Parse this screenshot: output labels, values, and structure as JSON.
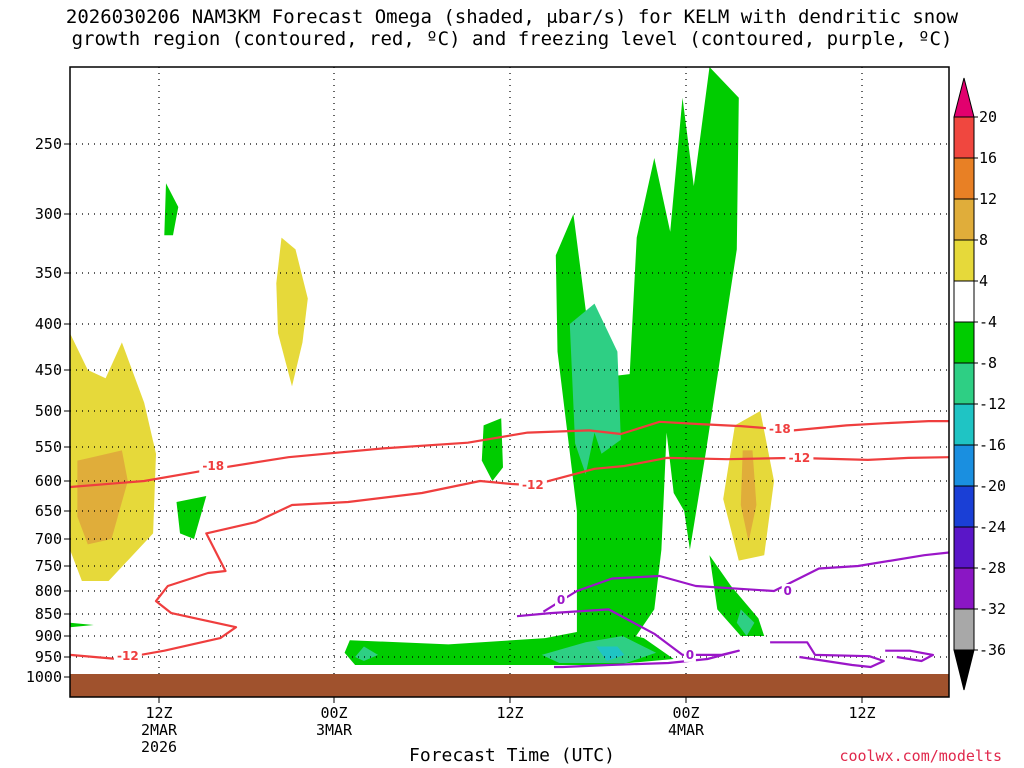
{
  "title_line1": "2026030206 NAM3KM Forecast Omega (shaded, μbar/s) for KELM with dendritic snow",
  "title_line2": "growth region (contoured, red, ºC) and freezing level (contoured, purple, ºC)",
  "xlabel": "Forecast Time (UTC)",
  "credit": "coolwx.com/modelts",
  "chart_data": {
    "type": "heatmap",
    "title": "2026030206 NAM3KM Forecast Omega (shaded, μbar/s) for KELM with dendritic snow growth region (contoured, red, ºC) and freezing level (contoured, purple, ºC)",
    "xlabel": "Forecast Time (UTC)",
    "ylabel": "",
    "x_hours_range": [
      6,
      57
    ],
    "y_pressure_range_hPa": [
      200,
      1000
    ],
    "y_ticks": [
      250,
      300,
      350,
      400,
      450,
      500,
      550,
      600,
      650,
      700,
      750,
      800,
      850,
      900,
      950,
      1000
    ],
    "x_ticks": [
      {
        "hour": 12,
        "labels": [
          "12Z",
          "2MAR",
          "2026"
        ]
      },
      {
        "hour": 22,
        "labels": [
          "00Z",
          "3MAR"
        ]
      },
      {
        "hour": 32,
        "labels": [
          "12Z"
        ]
      },
      {
        "hour": 42,
        "labels": [
          "00Z",
          "4MAR"
        ]
      },
      {
        "hour": 51,
        "labels": [
          "12Z"
        ]
      }
    ],
    "grid": true,
    "colorbar": {
      "labels": [
        "20",
        "16",
        "12",
        "8",
        "4",
        "-4",
        "-8",
        "-12",
        "-16",
        "-20",
        "-24",
        "-28",
        "-32",
        "-36"
      ],
      "colors": [
        "#e2006e",
        "#f0473f",
        "#e88025",
        "#e0ad3a",
        "#e6d93a",
        "#ffffff",
        "#00cc00",
        "#2ecf84",
        "#1fc4c4",
        "#1a8fe0",
        "#1a3fd6",
        "#5a16c8",
        "#8a16c4",
        "#a8a8a8",
        "#000000"
      ]
    },
    "omega_regions": [
      {
        "level": "4",
        "color": "#e6d93a",
        "polygon": [
          [
            6,
            410
          ],
          [
            7.2,
            450
          ],
          [
            8.4,
            460
          ],
          [
            9.5,
            420
          ],
          [
            11,
            490
          ],
          [
            11.8,
            560
          ],
          [
            11.6,
            690
          ],
          [
            8.6,
            780
          ],
          [
            6.8,
            780
          ],
          [
            6,
            720
          ]
        ]
      },
      {
        "level": "8",
        "color": "#e0ad3a",
        "polygon": [
          [
            6.5,
            570
          ],
          [
            7.5,
            565
          ],
          [
            9.5,
            555
          ],
          [
            9.9,
            600
          ],
          [
            8.8,
            700
          ],
          [
            7.2,
            710
          ],
          [
            6.5,
            660
          ]
        ]
      },
      {
        "level": "4",
        "color": "#e6d93a",
        "polygon": [
          [
            19,
            320
          ],
          [
            19.8,
            330
          ],
          [
            20.5,
            375
          ],
          [
            20.2,
            420
          ],
          [
            19.6,
            470
          ],
          [
            18.8,
            410
          ],
          [
            18.7,
            360
          ]
        ]
      },
      {
        "level": "4",
        "color": "#e6d93a",
        "polygon": [
          [
            36.9,
            680
          ],
          [
            38.7,
            670
          ],
          [
            39.2,
            740
          ],
          [
            38.5,
            790
          ],
          [
            36.8,
            795
          ],
          [
            36.7,
            730
          ]
        ]
      },
      {
        "level": "4",
        "color": "#e6d93a",
        "polygon": [
          [
            44.5,
            520
          ],
          [
            45.8,
            500
          ],
          [
            46.5,
            600
          ],
          [
            46,
            730
          ],
          [
            44.7,
            740
          ],
          [
            43.9,
            630
          ]
        ]
      },
      {
        "level": "8",
        "color": "#e0ad3a",
        "polygon": [
          [
            44.9,
            555
          ],
          [
            45.4,
            555
          ],
          [
            45.6,
            640
          ],
          [
            45.2,
            705
          ],
          [
            44.8,
            640
          ]
        ]
      },
      {
        "level": "-4",
        "color": "#00cc00",
        "polygon": [
          [
            12.4,
            278
          ],
          [
            13.1,
            295
          ],
          [
            12.8,
            318
          ],
          [
            12.3,
            318
          ]
        ]
      },
      {
        "level": "-4",
        "color": "#00cc00",
        "polygon": [
          [
            13,
            635
          ],
          [
            14.7,
            625
          ],
          [
            14,
            700
          ],
          [
            13.2,
            690
          ]
        ]
      },
      {
        "level": "-4",
        "color": "#00cc00",
        "polygon": [
          [
            6,
            870
          ],
          [
            7.6,
            875
          ],
          [
            6,
            880
          ]
        ]
      },
      {
        "level": "-4",
        "color": "#00cc00",
        "polygon": [
          [
            34.6,
            335
          ],
          [
            35.6,
            300
          ],
          [
            36.8,
            460
          ],
          [
            38.8,
            455
          ],
          [
            39.2,
            320
          ],
          [
            40.2,
            260
          ],
          [
            41.1,
            315
          ],
          [
            41.8,
            220
          ],
          [
            42.4,
            280
          ],
          [
            43.2,
            140
          ],
          [
            44.7,
            220
          ],
          [
            44.6,
            330
          ],
          [
            43,
            560
          ],
          [
            42.2,
            720
          ],
          [
            41.9,
            650
          ],
          [
            41.3,
            620
          ],
          [
            40.9,
            530
          ],
          [
            40.6,
            720
          ],
          [
            40.2,
            840
          ],
          [
            39,
            910
          ],
          [
            37,
            925
          ],
          [
            35.8,
            920
          ],
          [
            35.8,
            650
          ],
          [
            35.5,
            580
          ],
          [
            34.7,
            430
          ]
        ]
      },
      {
        "level": "-4",
        "color": "#00cc00",
        "polygon": [
          [
            22.9,
            910
          ],
          [
            28.5,
            920
          ],
          [
            34,
            905
          ],
          [
            37.2,
            880
          ],
          [
            39.6,
            905
          ],
          [
            41.3,
            955
          ],
          [
            37.5,
            970
          ],
          [
            29,
            970
          ],
          [
            23.2,
            970
          ],
          [
            22.6,
            940
          ]
        ]
      },
      {
        "level": "-8",
        "color": "#2ecf84",
        "polygon": [
          [
            35.4,
            400
          ],
          [
            36.8,
            380
          ],
          [
            38.1,
            430
          ],
          [
            38.3,
            540
          ],
          [
            37.2,
            560
          ],
          [
            36.8,
            530
          ],
          [
            36.3,
            590
          ],
          [
            35.7,
            545
          ]
        ]
      },
      {
        "level": "-8",
        "color": "#2ecf84",
        "polygon": [
          [
            33.8,
            945
          ],
          [
            36.3,
            915
          ],
          [
            38.4,
            900
          ],
          [
            40.3,
            940
          ],
          [
            38.6,
            965
          ],
          [
            34.8,
            965
          ]
        ]
      },
      {
        "level": "-8",
        "color": "#2ecf84",
        "polygon": [
          [
            23.7,
            925
          ],
          [
            24.5,
            945
          ],
          [
            23.7,
            960
          ],
          [
            23.2,
            950
          ]
        ]
      },
      {
        "level": "-4",
        "color": "#00cc00",
        "polygon": [
          [
            43.2,
            730
          ],
          [
            44.3,
            790
          ],
          [
            45.7,
            860
          ],
          [
            46,
            900
          ],
          [
            44.8,
            900
          ],
          [
            43.6,
            840
          ]
        ]
      },
      {
        "level": "-8",
        "color": "#2ecf84",
        "polygon": [
          [
            44.8,
            840
          ],
          [
            45.5,
            870
          ],
          [
            45.1,
            900
          ],
          [
            44.6,
            870
          ]
        ]
      },
      {
        "level": "-12",
        "color": "#1fc4c4",
        "polygon": [
          [
            36.9,
            925
          ],
          [
            38.1,
            925
          ],
          [
            38.5,
            945
          ],
          [
            37.5,
            960
          ]
        ]
      },
      {
        "level": "-4",
        "color": "#00cc00",
        "polygon": [
          [
            30.5,
            520
          ],
          [
            31.5,
            510
          ],
          [
            31.6,
            580
          ],
          [
            31,
            600
          ],
          [
            30.4,
            570
          ]
        ]
      }
    ],
    "dgz_contours": [
      {
        "label": "-18",
        "points": [
          [
            6,
            610
          ],
          [
            11,
            600
          ],
          [
            14.5,
            585
          ],
          [
            19.4,
            565
          ],
          [
            24.8,
            552
          ],
          [
            29.6,
            544
          ],
          [
            33,
            530
          ],
          [
            36.5,
            527
          ],
          [
            38.3,
            532
          ],
          [
            40.5,
            515
          ],
          [
            42.6,
            518
          ],
          [
            44.8,
            521
          ],
          [
            47.5,
            527
          ],
          [
            50.2,
            520
          ],
          [
            52.6,
            517
          ],
          [
            55.6,
            514
          ],
          [
            57,
            514
          ]
        ]
      },
      {
        "label": "-12",
        "points": [
          [
            6,
            945
          ],
          [
            9.2,
            955
          ],
          [
            12.3,
            935
          ],
          [
            15.5,
            905
          ],
          [
            16.4,
            880
          ],
          [
            12.7,
            848
          ],
          [
            11.8,
            822
          ],
          [
            12.5,
            790
          ],
          [
            14.8,
            764
          ],
          [
            15.8,
            760
          ],
          [
            14.7,
            690
          ],
          [
            17.5,
            670
          ],
          [
            19.6,
            640
          ],
          [
            22.8,
            635
          ],
          [
            27,
            620
          ],
          [
            30.3,
            600
          ],
          [
            32.1,
            605
          ],
          [
            33.3,
            607
          ],
          [
            36.8,
            582
          ],
          [
            38.5,
            578
          ],
          [
            40.9,
            566
          ],
          [
            44.1,
            568
          ],
          [
            47.6,
            566
          ],
          [
            51.4,
            569
          ],
          [
            54.2,
            566
          ],
          [
            57,
            565
          ]
        ]
      }
    ],
    "freezing_contours": [
      {
        "label": "0",
        "points": [
          [
            33.9,
            845
          ],
          [
            35.8,
            800
          ],
          [
            37.8,
            775
          ],
          [
            40.5,
            770
          ],
          [
            42.5,
            790
          ],
          [
            46.5,
            800
          ],
          [
            48.8,
            755
          ],
          [
            50.8,
            750
          ],
          [
            55.3,
            730
          ],
          [
            57,
            725
          ]
        ]
      },
      {
        "label": "0",
        "points": [
          [
            32.4,
            855
          ],
          [
            34.3,
            848
          ],
          [
            37.6,
            840
          ],
          [
            40.2,
            895
          ],
          [
            41.8,
            945
          ],
          [
            43.8,
            945
          ],
          [
            44.7,
            935
          ],
          [
            43.1,
            955
          ],
          [
            41,
            965
          ],
          [
            37.6,
            970
          ],
          [
            35,
            975
          ],
          [
            34.5,
            975
          ]
        ]
      },
      {
        "label": "",
        "points": [
          [
            46.3,
            915
          ],
          [
            48.2,
            915
          ],
          [
            48.6,
            945
          ],
          [
            51.5,
            948
          ],
          [
            52.5,
            960
          ],
          [
            51.6,
            975
          ],
          [
            50.5,
            970
          ],
          [
            47.8,
            950
          ]
        ]
      },
      {
        "label": "",
        "points": [
          [
            52.6,
            935
          ],
          [
            54.3,
            935
          ],
          [
            55.9,
            945
          ],
          [
            55.1,
            960
          ],
          [
            53.4,
            950
          ]
        ]
      }
    ]
  }
}
